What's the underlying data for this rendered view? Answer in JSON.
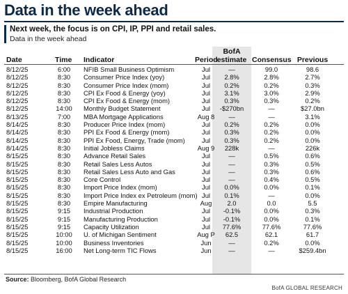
{
  "header": {
    "title": "Data in the week ahead",
    "subtitle": "Next week, the focus is on CPI, IP, PPI and retail sales.",
    "subtitle2": "Data in the week ahead"
  },
  "table": {
    "columns": {
      "date": "Date",
      "time": "Time",
      "indicator": "Indicator",
      "period": "Period",
      "bofa_line1": "BofA",
      "bofa_line2": "estimate",
      "consensus": "Consensus",
      "previous": "Previous"
    },
    "rows": [
      {
        "date": "8/12/25",
        "time": "6:00",
        "indicator": "NFIB Small Business Optimism",
        "period": "Jul",
        "bofa": "—",
        "consensus": "99.0",
        "previous": "98.6"
      },
      {
        "date": "8/12/25",
        "time": "8:30",
        "indicator": "Consumer Price Index (yoy)",
        "period": "Jul",
        "bofa": "2.8%",
        "consensus": "2.8%",
        "previous": "2.7%"
      },
      {
        "date": "8/12/25",
        "time": "8:30",
        "indicator": "Consumer Price Index (mom)",
        "period": "Jul",
        "bofa": "0.2%",
        "consensus": "0.2%",
        "previous": "0.3%"
      },
      {
        "date": "8/12/25",
        "time": "8:30",
        "indicator": "CPI Ex Food & Energy (yoy)",
        "period": "Jul",
        "bofa": "3.1%",
        "consensus": "3.0%",
        "previous": "2.9%"
      },
      {
        "date": "8/12/25",
        "time": "8:30",
        "indicator": "CPI Ex Food & Energy (mom)",
        "period": "Jul",
        "bofa": "0.3%",
        "consensus": "0.3%",
        "previous": "0.2%"
      },
      {
        "date": "8/12/25",
        "time": "14:00",
        "indicator": "Monthly Budget Statement",
        "period": "Jul",
        "bofa": "-$270bn",
        "consensus": "—",
        "previous": "$27.0bn"
      },
      {
        "date": "8/13/25",
        "time": "7:00",
        "indicator": "MBA Mortgage Applications",
        "period": "Aug 8",
        "bofa": "—",
        "consensus": "—",
        "previous": "3.1%"
      },
      {
        "date": "8/14/25",
        "time": "8:30",
        "indicator": "Producer Price Index (mom)",
        "period": "Jul",
        "bofa": "0.2%",
        "consensus": "0.2%",
        "previous": "0.0%"
      },
      {
        "date": "8/14/25",
        "time": "8:30",
        "indicator": "PPI Ex Food & Energy (mom)",
        "period": "Jul",
        "bofa": "0.3%",
        "consensus": "0.2%",
        "previous": "0.0%"
      },
      {
        "date": "8/14/25",
        "time": "8:30",
        "indicator": "PPI Ex Food, Energy, Trade (mom)",
        "period": "Jul",
        "bofa": "0.3%",
        "consensus": "0.2%",
        "previous": "0.0%"
      },
      {
        "date": "8/14/25",
        "time": "8:30",
        "indicator": "Initial Jobless Claims",
        "period": "Aug 9",
        "bofa": "228k",
        "consensus": "—",
        "previous": "226k"
      },
      {
        "date": "8/15/25",
        "time": "8:30",
        "indicator": "Advance Retail Sales",
        "period": "Jul",
        "bofa": "—",
        "consensus": "0.5%",
        "previous": "0.6%"
      },
      {
        "date": "8/15/25",
        "time": "8:30",
        "indicator": "Retail Sales Less Autos",
        "period": "Jul",
        "bofa": "—",
        "consensus": "0.3%",
        "previous": "0.5%"
      },
      {
        "date": "8/15/25",
        "time": "8:30",
        "indicator": "Retail Sales Less Auto and Gas",
        "period": "Jul",
        "bofa": "—",
        "consensus": "0.3%",
        "previous": "0.6%"
      },
      {
        "date": "8/15/25",
        "time": "8:30",
        "indicator": "Core Control",
        "period": "Jul",
        "bofa": "—",
        "consensus": "0.4%",
        "previous": "0.5%"
      },
      {
        "date": "8/15/25",
        "time": "8:30",
        "indicator": "Import Price Index (mom)",
        "period": "Jul",
        "bofa": "0.0%",
        "consensus": "0.0%",
        "previous": "0.1%"
      },
      {
        "date": "8/15/25",
        "time": "8:30",
        "indicator": "Import Price Index ex Petroleum (mom)",
        "period": "Jul",
        "bofa": "0.1%",
        "consensus": "—",
        "previous": "0.0%"
      },
      {
        "date": "8/15/25",
        "time": "8:30",
        "indicator": "Empire Manufacturing",
        "period": "Aug",
        "bofa": "2.0",
        "consensus": "0.0",
        "previous": "5.5"
      },
      {
        "date": "8/15/25",
        "time": "9:15",
        "indicator": "Industrial Production",
        "period": "Jul",
        "bofa": "-0.1%",
        "consensus": "0.0%",
        "previous": "0.3%"
      },
      {
        "date": "8/15/25",
        "time": "9:15",
        "indicator": "Manufacturing Production",
        "period": "Jul",
        "bofa": "-0.1%",
        "consensus": "0.0%",
        "previous": "0.1%"
      },
      {
        "date": "8/15/25",
        "time": "9:15",
        "indicator": "Capacity Utilization",
        "period": "Jul",
        "bofa": "77.6%",
        "consensus": "77.6%",
        "previous": "77.6%"
      },
      {
        "date": "8/15/25",
        "time": "10:00",
        "indicator": "U. of Michigan Sentiment",
        "period": "Aug P",
        "bofa": "62.5",
        "consensus": "62.1",
        "previous": "61.7"
      },
      {
        "date": "8/15/25",
        "time": "10:00",
        "indicator": "Business Inventories",
        "period": "Jun",
        "bofa": "—",
        "consensus": "0.2%",
        "previous": "0.0%"
      },
      {
        "date": "8/15/25",
        "time": "16:00",
        "indicator": "Net Long-term TIC Flows",
        "period": "Jun",
        "bofa": "—",
        "consensus": "—",
        "previous": "$259.4bn"
      }
    ]
  },
  "footer": {
    "source_label": "Source:",
    "source_text": "Bloomberg, BofA Global Research",
    "brand": "BofA GLOBAL RESEARCH"
  }
}
